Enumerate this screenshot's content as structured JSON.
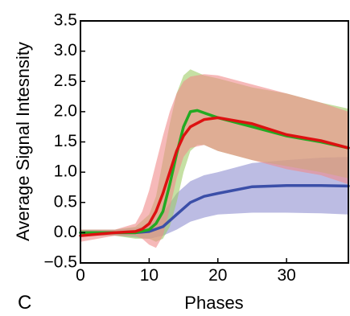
{
  "chart_data": {
    "type": "line",
    "panel_label": "C",
    "xlabel": "Phases",
    "ylabel": "Average Signal Intesnsity",
    "xlim": [
      0,
      39
    ],
    "ylim": [
      -0.5,
      3.5
    ],
    "x_ticks": [
      0,
      10,
      20,
      30
    ],
    "x_tick_labels": [
      "0",
      "10",
      "20",
      "30"
    ],
    "y_ticks": [
      3.5,
      3.0,
      2.5,
      2.0,
      1.5,
      1.0,
      0.5,
      0.0,
      -0.5
    ],
    "y_tick_labels": [
      "3.5",
      "3.0",
      "2.5",
      "2.0",
      "1.5",
      "1.0",
      "0.5",
      "0.0",
      "−0.5"
    ],
    "grid": false,
    "series": [
      {
        "color": "#3b4fa8",
        "band_color": "#8f8fd0",
        "x": [
          0,
          5,
          8,
          10,
          12,
          14,
          16,
          18,
          20,
          25,
          30,
          35,
          39
        ],
        "mean": [
          0.0,
          0.0,
          0.0,
          0.02,
          0.1,
          0.3,
          0.5,
          0.6,
          0.65,
          0.76,
          0.78,
          0.78,
          0.77
        ],
        "upper": [
          0.05,
          0.05,
          0.08,
          0.12,
          0.32,
          0.65,
          0.85,
          0.95,
          1.0,
          1.15,
          1.2,
          1.24,
          1.25
        ],
        "lower": [
          -0.05,
          -0.05,
          -0.08,
          -0.1,
          -0.05,
          0.05,
          0.18,
          0.25,
          0.3,
          0.33,
          0.33,
          0.32,
          0.3
        ]
      },
      {
        "color": "#22aa22",
        "band_color": "#9fcc66",
        "x": [
          0,
          5,
          8,
          10,
          11,
          12,
          13,
          14,
          15,
          16,
          17,
          18,
          20,
          25,
          30,
          35,
          39
        ],
        "mean": [
          0.0,
          0.0,
          0.0,
          0.05,
          0.15,
          0.35,
          0.8,
          1.3,
          1.75,
          2.0,
          2.02,
          1.98,
          1.9,
          1.75,
          1.6,
          1.5,
          1.4
        ],
        "upper": [
          0.05,
          0.05,
          0.1,
          0.3,
          0.6,
          1.2,
          1.8,
          2.3,
          2.6,
          2.7,
          2.65,
          2.6,
          2.55,
          2.4,
          2.3,
          2.15,
          2.05
        ],
        "lower": [
          -0.05,
          -0.05,
          -0.1,
          -0.1,
          -0.15,
          -0.1,
          0.1,
          0.5,
          1.0,
          1.35,
          1.45,
          1.45,
          1.35,
          1.2,
          1.1,
          1.0,
          0.9
        ]
      },
      {
        "color": "#dd1111",
        "band_color": "#f08a8a",
        "x": [
          0,
          5,
          8,
          9,
          10,
          11,
          12,
          13,
          14,
          15,
          16,
          18,
          20,
          25,
          30,
          35,
          39
        ],
        "mean": [
          -0.05,
          0.0,
          0.02,
          0.06,
          0.15,
          0.35,
          0.65,
          1.0,
          1.35,
          1.6,
          1.75,
          1.87,
          1.9,
          1.8,
          1.62,
          1.52,
          1.4
        ],
        "upper": [
          0.05,
          0.05,
          0.15,
          0.35,
          0.7,
          1.15,
          1.6,
          2.0,
          2.3,
          2.5,
          2.58,
          2.62,
          2.6,
          2.45,
          2.3,
          2.15,
          2.0
        ],
        "lower": [
          -0.15,
          -0.05,
          -0.05,
          -0.1,
          -0.2,
          -0.25,
          -0.05,
          0.4,
          0.9,
          1.25,
          1.4,
          1.45,
          1.35,
          1.2,
          1.05,
          0.95,
          0.8
        ]
      }
    ]
  }
}
